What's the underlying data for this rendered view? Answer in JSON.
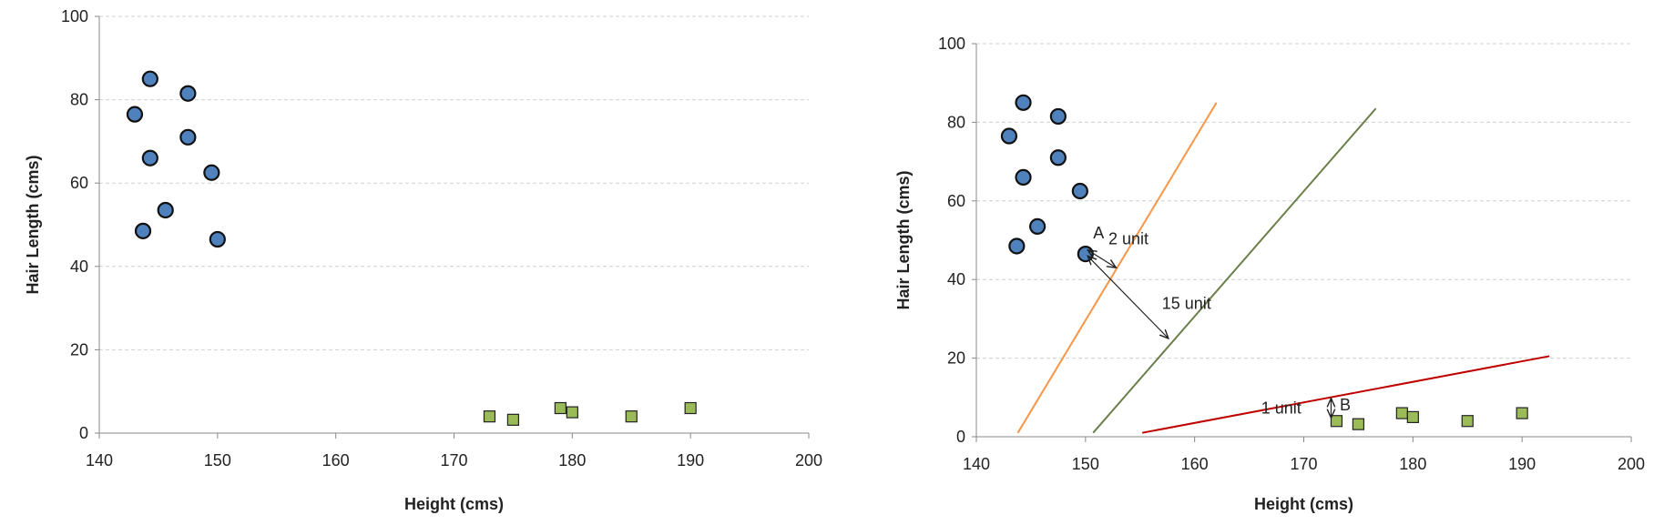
{
  "chart_data": [
    {
      "type": "scatter",
      "title": "",
      "xlabel": "Height (cms)",
      "ylabel": "Hair Length (cms)",
      "xlim": [
        140,
        200
      ],
      "ylim": [
        0,
        100
      ],
      "xticks": [
        140,
        150,
        160,
        170,
        180,
        190,
        200
      ],
      "yticks": [
        0,
        20,
        40,
        60,
        80,
        100
      ],
      "grid": "horizontal dashed",
      "series": [
        {
          "marker": "circle",
          "color": "#4f81bd",
          "points": [
            [
              143,
              76.5
            ],
            [
              144.3,
              85
            ],
            [
              147.5,
              81.5
            ],
            [
              144.3,
              66
            ],
            [
              147.5,
              71
            ],
            [
              149.5,
              62.5
            ],
            [
              145.6,
              53.5
            ],
            [
              143.7,
              48.5
            ],
            [
              150,
              46.5
            ]
          ]
        },
        {
          "marker": "square",
          "color": "#9bbb59",
          "points": [
            [
              173,
              4
            ],
            [
              175,
              3.2
            ],
            [
              179,
              6
            ],
            [
              180,
              5
            ],
            [
              185,
              4
            ],
            [
              190,
              6
            ]
          ]
        }
      ]
    },
    {
      "type": "scatter",
      "title": "",
      "xlabel": "Height (cms)",
      "ylabel": "Hair Length (cms)",
      "xlim": [
        140,
        200
      ],
      "ylim": [
        0,
        100
      ],
      "xticks": [
        140,
        150,
        160,
        170,
        180,
        190,
        200
      ],
      "yticks": [
        0,
        20,
        40,
        60,
        80,
        100
      ],
      "grid": "horizontal dashed",
      "series": [
        {
          "marker": "circle",
          "color": "#4f81bd",
          "points": [
            [
              143,
              76.5
            ],
            [
              144.3,
              85
            ],
            [
              147.5,
              81.5
            ],
            [
              144.3,
              66
            ],
            [
              147.5,
              71
            ],
            [
              149.5,
              62.5
            ],
            [
              145.6,
              53.5
            ],
            [
              143.7,
              48.5
            ],
            [
              150,
              46.5
            ]
          ]
        },
        {
          "marker": "square",
          "color": "#9bbb59",
          "points": [
            [
              173,
              4
            ],
            [
              175,
              3.2
            ],
            [
              179,
              6
            ],
            [
              180,
              5
            ],
            [
              185,
              4
            ],
            [
              190,
              6
            ]
          ]
        }
      ],
      "lines": [
        {
          "color": "#f79646",
          "from": [
            143.8,
            1
          ],
          "to": [
            162,
            85
          ]
        },
        {
          "color": "#6b7f4a",
          "from": [
            150.7,
            1
          ],
          "to": [
            176.6,
            83.5
          ]
        },
        {
          "color": "#c00000",
          "from": [
            155.2,
            1
          ],
          "to": [
            192.5,
            20.5
          ]
        }
      ],
      "arrows": [
        {
          "from": [
            150.2,
            47.5
          ],
          "to": [
            152.8,
            43
          ]
        },
        {
          "from": [
            150.2,
            46
          ],
          "to": [
            157.6,
            25
          ]
        },
        {
          "from": [
            172.5,
            9.8
          ],
          "to": [
            172.5,
            4.8
          ]
        }
      ],
      "annotations": [
        {
          "text": "A",
          "at": [
            150.7,
            50.5
          ]
        },
        {
          "text": "2 unit",
          "at": [
            152.1,
            49
          ]
        },
        {
          "text": "15 unit",
          "at": [
            157,
            32.5
          ]
        },
        {
          "text": "1 unit",
          "at": [
            166.1,
            5.9
          ]
        },
        {
          "text": "B",
          "at": [
            173.3,
            6.7
          ]
        }
      ]
    }
  ]
}
